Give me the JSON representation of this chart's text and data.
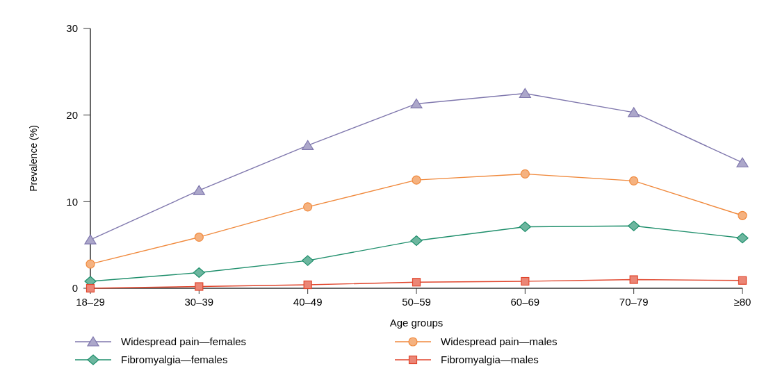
{
  "chart_data": {
    "type": "line",
    "xlabel": "Age groups",
    "ylabel": "Prevalence (%)",
    "categories": [
      "18–29",
      "30–39",
      "40–49",
      "50–59",
      "60–69",
      "70–79",
      "≥80"
    ],
    "ylim": [
      0,
      30
    ],
    "yticks": [
      0,
      10,
      20,
      30
    ],
    "grid": false,
    "legend": "bottom",
    "series": [
      {
        "name": "Widespread pain—females",
        "color": "#7f77ad",
        "marker": "triangle",
        "values": [
          5.6,
          11.3,
          16.5,
          21.3,
          22.5,
          20.3,
          14.5
        ]
      },
      {
        "name": "Widespread pain—males",
        "color": "#f0893c",
        "marker": "circle",
        "values": [
          2.8,
          5.9,
          9.4,
          12.5,
          13.2,
          12.4,
          8.4
        ]
      },
      {
        "name": "Fibromyalgia—females",
        "color": "#1f8f6c",
        "marker": "diamond",
        "values": [
          0.8,
          1.8,
          3.2,
          5.5,
          7.1,
          7.2,
          5.8
        ]
      },
      {
        "name": "Fibromyalgia—males",
        "color": "#e0452c",
        "marker": "square",
        "values": [
          0,
          0.2,
          0.4,
          0.7,
          0.8,
          1.0,
          0.9
        ]
      }
    ]
  }
}
